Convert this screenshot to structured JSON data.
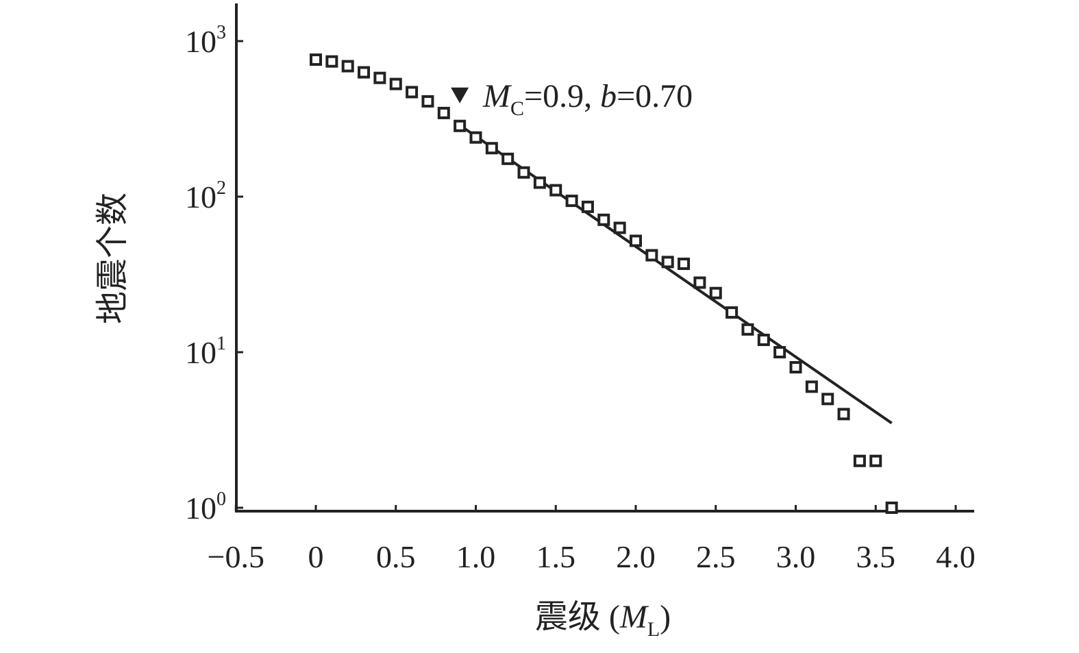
{
  "chart_data": {
    "type": "scatter",
    "xlabel_prefix": "震级 (",
    "xlabel_var": "M",
    "xlabel_sub": "L",
    "xlabel_suffix": ")",
    "ylabel": "地震个数",
    "y_scale": "log",
    "xlim": [
      -0.5,
      4.0
    ],
    "ylim": [
      1,
      1000
    ],
    "x_ticks": [
      -0.5,
      0,
      0.5,
      1.0,
      1.5,
      2.0,
      2.5,
      3.0,
      3.5,
      4.0
    ],
    "x_tick_labels": [
      "−0.5",
      "0",
      "0.5",
      "1.0",
      "1.5",
      "2.0",
      "2.5",
      "3.0",
      "3.5",
      "4.0"
    ],
    "y_ticks": [
      1,
      10,
      100,
      1000
    ],
    "y_tick_base": "10",
    "y_tick_exponents": [
      "0",
      "1",
      "2",
      "3"
    ],
    "points": {
      "x": [
        0.0,
        0.1,
        0.2,
        0.3,
        0.4,
        0.5,
        0.6,
        0.7,
        0.8,
        0.9,
        1.0,
        1.1,
        1.2,
        1.3,
        1.4,
        1.5,
        1.6,
        1.7,
        1.8,
        1.9,
        2.0,
        2.1,
        2.2,
        2.3,
        2.4,
        2.5,
        2.6,
        2.7,
        2.8,
        2.9,
        3.0,
        3.1,
        3.2,
        3.3,
        3.4,
        3.5,
        3.6
      ],
      "y": [
        760,
        740,
        690,
        630,
        580,
        530,
        470,
        410,
        345,
        285,
        240,
        205,
        175,
        143,
        123,
        110,
        94,
        86,
        71,
        63,
        52,
        42,
        38,
        37,
        28,
        24,
        18,
        14,
        12,
        10,
        8,
        6,
        5,
        4,
        2,
        2,
        1
      ]
    },
    "fit_line": {
      "x": [
        0.9,
        3.6
      ],
      "y": [
        288,
        3.5
      ]
    },
    "mc_marker": {
      "x": 0.9,
      "y": 450
    },
    "annotation": {
      "m_var": "M",
      "m_sub": "C",
      "m_value": "=0.9, ",
      "b_var": "b",
      "b_value": "=0.70"
    }
  }
}
